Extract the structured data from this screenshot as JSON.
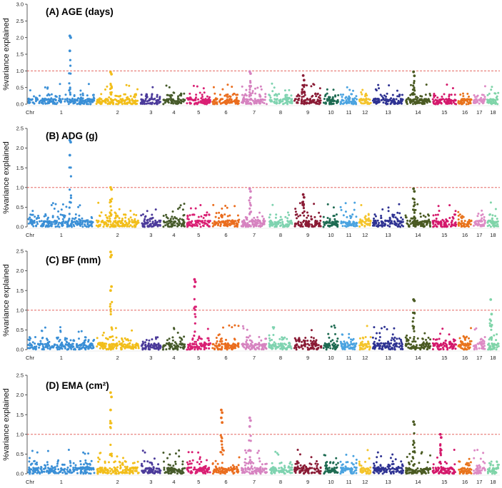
{
  "figure": {
    "x_axis_label": "Chr",
    "chromosomes": [
      "1",
      "2",
      "3",
      "4",
      "5",
      "6",
      "7",
      "8",
      "9",
      "10",
      "11",
      "12",
      "13",
      "14",
      "15",
      "16",
      "17",
      "18"
    ],
    "chromosome_colors": [
      "#3a8fd6",
      "#f2be1a",
      "#4b3a9a",
      "#465a2a",
      "#d91f73",
      "#ea6d1e",
      "#d683c0",
      "#7fd3b0",
      "#8a1b35",
      "#1e6b52",
      "#4aa3e0",
      "#f4c42b",
      "#2e3292",
      "#4a5a22",
      "#d4186b",
      "#e8731c",
      "#dd8ac4",
      "#7fd4a8"
    ],
    "threshold_color": "#e0504a"
  },
  "chart_data": [
    {
      "type": "scatter",
      "title": "(A) AGE (days)",
      "ylabel": "%variance explained",
      "xlabel": "Chr",
      "ylim": [
        0,
        3.0
      ],
      "yticks": [
        "0.0",
        "0.5",
        "1.0",
        "1.5",
        "2.0",
        "2.5",
        "3.0"
      ],
      "threshold": 1.0,
      "peaks": [
        {
          "chr": "1",
          "values": [
            2.05,
            2.0,
            1.6
          ]
        },
        {
          "chr": "2",
          "values": [
            0.96,
            0.9
          ]
        },
        {
          "chr": "7",
          "values": [
            0.98,
            0.92
          ]
        },
        {
          "chr": "9",
          "values": [
            0.86,
            0.72
          ]
        },
        {
          "chr": "14",
          "values": [
            0.97,
            0.85
          ]
        }
      ]
    },
    {
      "type": "scatter",
      "title": "(B) ADG (g)",
      "ylabel": "%variance explained",
      "xlabel": "Chr",
      "ylim": [
        0,
        2.5
      ],
      "yticks": [
        "0.0",
        "0.5",
        "1.0",
        "1.5",
        "2.0",
        "2.5"
      ],
      "threshold": 1.0,
      "peaks": [
        {
          "chr": "1",
          "values": [
            2.2,
            2.15,
            1.82
          ]
        },
        {
          "chr": "2",
          "values": [
            1.0,
            0.95
          ]
        },
        {
          "chr": "7",
          "values": [
            0.97,
            0.9
          ]
        },
        {
          "chr": "9",
          "values": [
            0.82,
            0.75
          ]
        },
        {
          "chr": "14",
          "values": [
            0.97,
            0.9
          ]
        }
      ]
    },
    {
      "type": "scatter",
      "title": "(C) BF (mm)",
      "ylabel": "%variance explained",
      "xlabel": "Chr",
      "ylim": [
        0,
        2.5
      ],
      "yticks": [
        "0.0",
        "0.5",
        "1.0",
        "1.5",
        "2.0",
        "2.5"
      ],
      "threshold": 1.0,
      "peaks": [
        {
          "chr": "2",
          "values": [
            2.48,
            2.4,
            2.35,
            1.6,
            1.5
          ]
        },
        {
          "chr": "5",
          "values": [
            1.78,
            1.72,
            1.6
          ]
        },
        {
          "chr": "14",
          "values": [
            1.27,
            1.24
          ]
        },
        {
          "chr": "18",
          "values": [
            1.27,
            0.9
          ]
        }
      ]
    },
    {
      "type": "scatter",
      "title": "(D) EMA (cm²)",
      "ylabel": "%variance explained",
      "xlabel": "Chr",
      "ylim": [
        0,
        2.5
      ],
      "yticks": [
        "0.0",
        "0.5",
        "1.0",
        "1.5",
        "2.0",
        "2.5"
      ],
      "threshold": 1.0,
      "peaks": [
        {
          "chr": "2",
          "values": [
            2.06,
            1.95,
            1.62
          ]
        },
        {
          "chr": "6",
          "values": [
            1.62,
            1.55,
            1.42,
            1.3
          ]
        },
        {
          "chr": "7",
          "values": [
            1.42,
            1.35,
            1.2
          ]
        },
        {
          "chr": "14",
          "values": [
            1.32,
            1.25
          ]
        },
        {
          "chr": "15",
          "values": [
            1.0,
            0.92
          ]
        }
      ]
    }
  ]
}
